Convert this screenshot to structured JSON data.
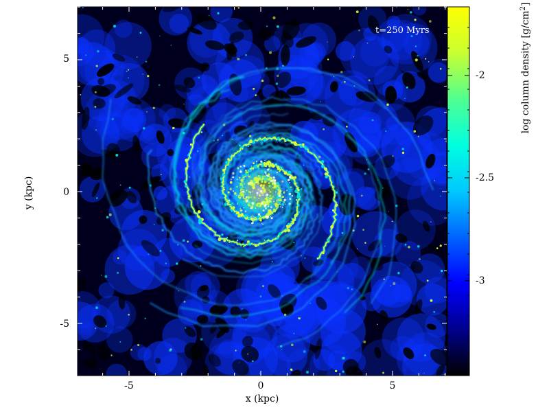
{
  "figure": {
    "annotation": "t=250 Myrs",
    "x_axis": {
      "label": "x (kpc)",
      "ticks": [
        "-5",
        "0",
        "5"
      ]
    },
    "y_axis": {
      "label": "y (kpc)",
      "ticks": [
        "5",
        "0",
        "-5"
      ]
    },
    "colorbar": {
      "label": "log column density [g/cm",
      "label_superscript": "2",
      "label_end": "]",
      "ticks": [
        "-2",
        "-2.5",
        "-3"
      ],
      "colors": [
        "#000000",
        "#00008c",
        "#0000ff",
        "#0064ff",
        "#00c8ff",
        "#00ffe0",
        "#50ff90",
        "#c8ff30",
        "#ffff00"
      ]
    },
    "map_palette": {
      "background": "#00001e",
      "voids": "#000000",
      "diffuse": "#0a32ff",
      "filaments": "#1e96ff",
      "dense": "#00e0e6",
      "peaks": "#dcff3c"
    }
  }
}
